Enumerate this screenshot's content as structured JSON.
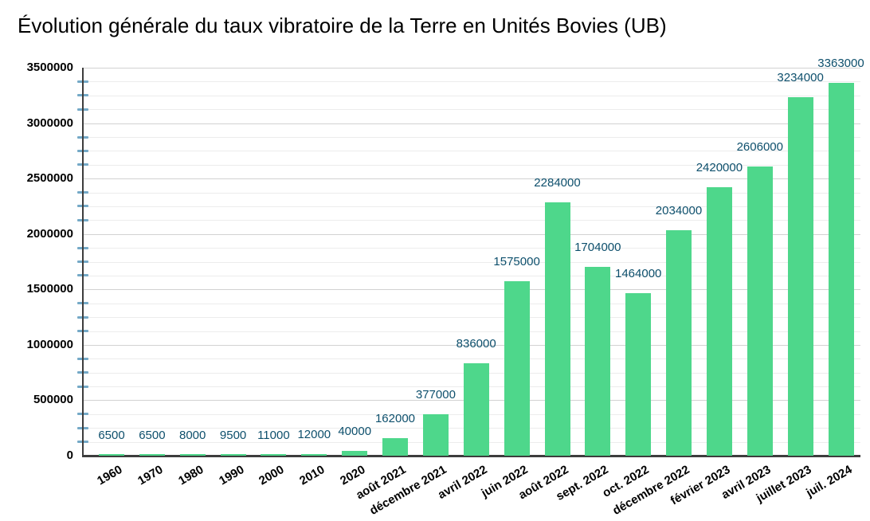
{
  "chart_data": {
    "type": "bar",
    "title": "Évolution générale du taux vibratoire de la Terre en Unités Bovies (UB)",
    "categories": [
      "1960",
      "1970",
      "1980",
      "1990",
      "2000",
      "2010",
      "2020",
      "août 2021",
      "décembre 2021",
      "avril 2022",
      "juin 2022",
      "août 2022",
      "sept. 2022",
      "oct. 2022",
      "décembre 2022",
      "février 2023",
      "avril 2023",
      "juillet 2023",
      "juil. 2024"
    ],
    "values": [
      6500,
      6500,
      8000,
      9500,
      11000,
      12000,
      40000,
      162000,
      377000,
      836000,
      1575000,
      2284000,
      1704000,
      1464000,
      2034000,
      2420000,
      2606000,
      3234000,
      3363000
    ],
    "data_labels": [
      "6500",
      "6500",
      "8000",
      "9500",
      "11000",
      "12000",
      "40000",
      "162000",
      "377000",
      "836000",
      "1575000",
      "2284000",
      "1704000",
      "1464000",
      "2034000",
      "2420000",
      "2606000",
      "3234000",
      "3363000"
    ],
    "xlabel": "",
    "ylabel": "",
    "ylim": [
      0,
      3500000
    ],
    "y_major_step": 500000,
    "y_minor_step": 125000,
    "y_tick_labels": [
      "0",
      "500000",
      "1000000",
      "1500000",
      "2000000",
      "2500000",
      "3000000",
      "3500000"
    ],
    "legend_position": "none",
    "grid": "horizontal",
    "colors": {
      "bar": "#4ed78b",
      "data_label": "#0d4f6c",
      "axis": "#3d3d3d",
      "grid_minor": "#ececec",
      "grid_major": "#d2d2d2",
      "minor_tick": "#74a9c7",
      "text": "#000000"
    }
  }
}
